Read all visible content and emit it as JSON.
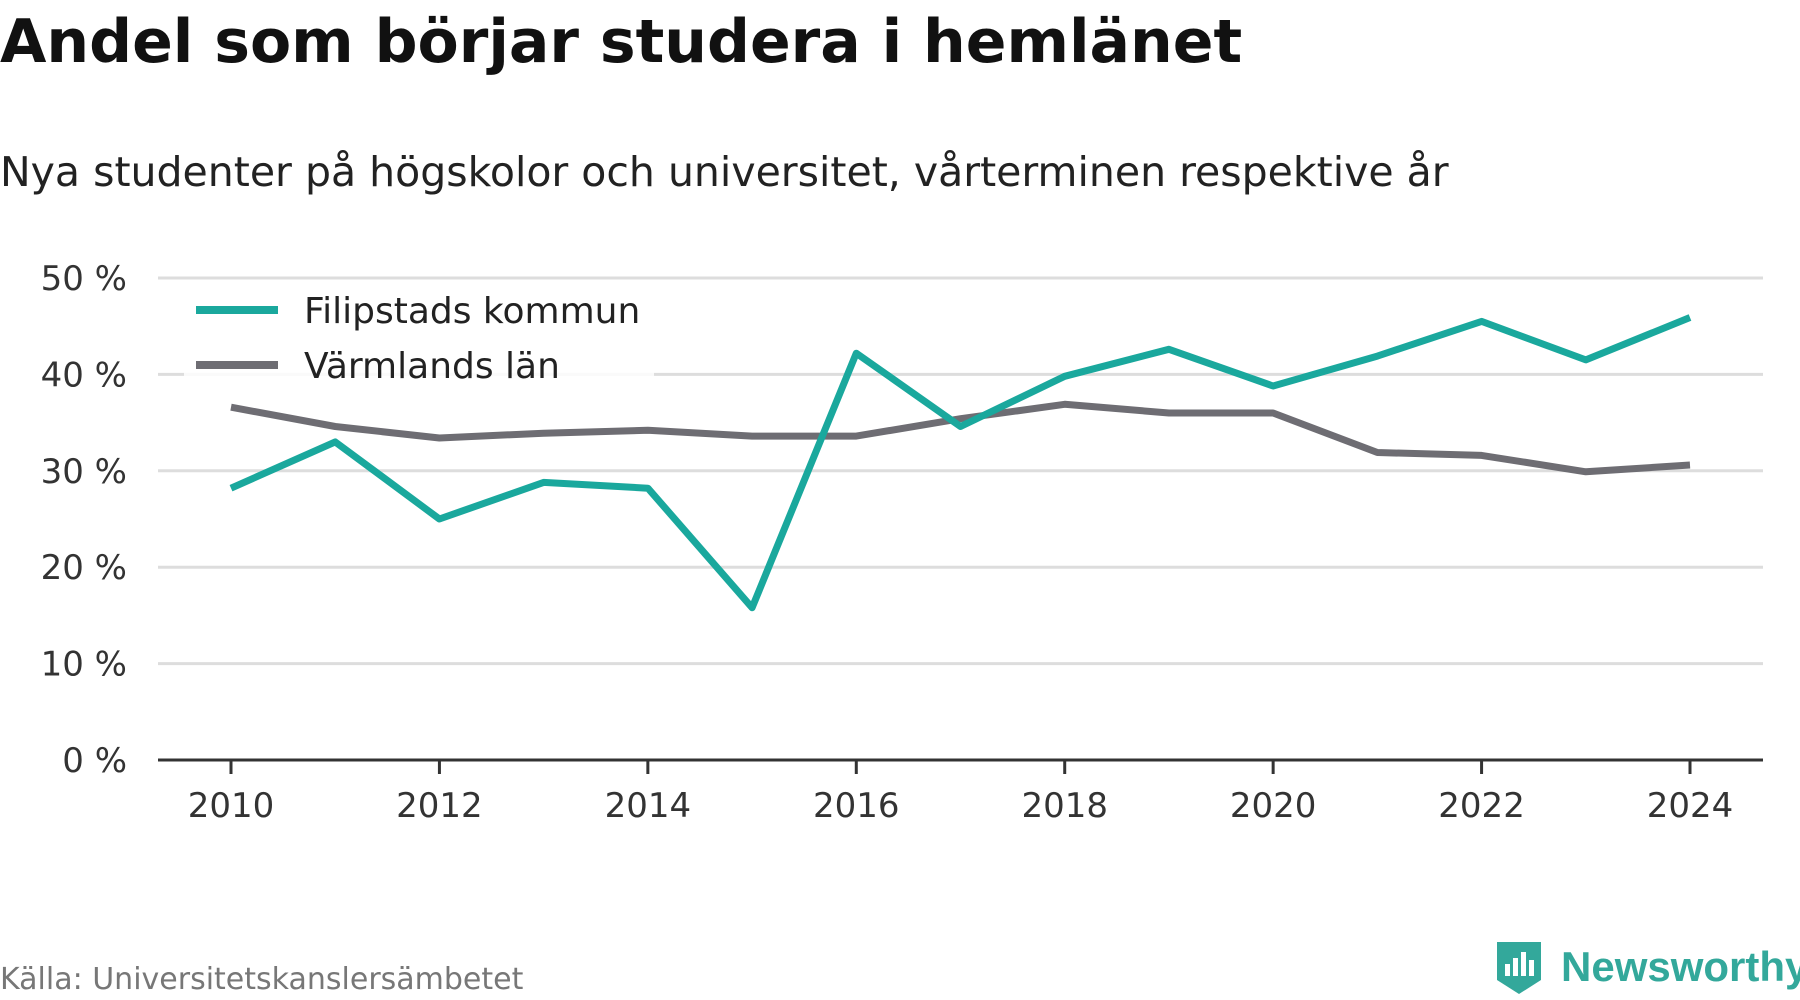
{
  "header": {
    "title": "Andel som börjar studera i hemlänet",
    "subtitle": "Nya studenter på högskolor och universitet, vårterminen respektive år"
  },
  "footer": {
    "source": "Källa: Universitetskanslersämbetet",
    "brand": "Newsworthy",
    "brand_icon": "bar-chart-badge-icon"
  },
  "colors": {
    "filipstad": "#1aa89d",
    "varmland": "#6e6d73",
    "grid": "#dddddd",
    "axis": "#333333",
    "brand": "#33a89b"
  },
  "chart_data": {
    "type": "line",
    "title": "Andel som börjar studera i hemlänet",
    "subtitle": "Nya studenter på högskolor och universitet, vårterminen respektive år",
    "xlabel": "",
    "ylabel": "",
    "x": [
      2010,
      2011,
      2012,
      2013,
      2014,
      2015,
      2016,
      2017,
      2018,
      2019,
      2020,
      2021,
      2022,
      2023,
      2024
    ],
    "series": [
      {
        "name": "Filipstads kommun",
        "color": "#1aa89d",
        "values": [
          28.2,
          33.0,
          25.0,
          28.8,
          28.2,
          15.8,
          42.2,
          34.6,
          39.8,
          42.6,
          38.8,
          41.9,
          45.5,
          41.5,
          45.9
        ]
      },
      {
        "name": "Värmlands län",
        "color": "#6e6d73",
        "values": [
          36.6,
          34.6,
          33.4,
          33.9,
          34.2,
          33.6,
          33.6,
          35.4,
          36.9,
          36.0,
          36.0,
          31.9,
          31.6,
          29.9,
          30.6
        ]
      }
    ],
    "xticks": [
      "2010",
      "2012",
      "2014",
      "2016",
      "2018",
      "2020",
      "2022",
      "2024"
    ],
    "yticks": [
      "0 %",
      "10 %",
      "20 %",
      "30 %",
      "40 %",
      "50 %"
    ],
    "xlim": [
      2010,
      2024
    ],
    "ylim": [
      0,
      50
    ],
    "grid": true,
    "legend_position": "top-left"
  }
}
